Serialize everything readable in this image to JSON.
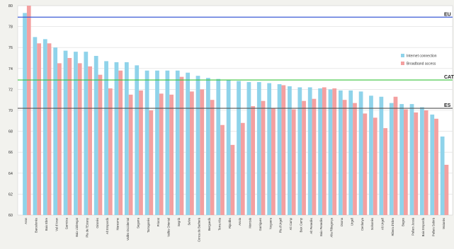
{
  "chart_data": {
    "type": "bar",
    "ylim": [
      60,
      80
    ],
    "yticks": [
      60,
      62,
      64,
      66,
      68,
      70,
      72,
      74,
      76,
      78,
      80
    ],
    "grid": true,
    "legend_position": "right",
    "categories": [
      "Aran",
      "Barcelonès",
      "Baix Ebre",
      "Val d'Aran",
      "Garrotxa",
      "Baix Llobregat",
      "Pla de l'Estany",
      "Gironès",
      "Alt Empordà",
      "Maresme",
      "Vallès Occidental",
      "Segarra",
      "Tarragonès",
      "Priorat",
      "Vallès Oriental",
      "Segrià",
      "Selva",
      "Conca de Barberà",
      "Berguedà",
      "Terra Alta",
      "Ripollès",
      "Anoia",
      "Montsià",
      "Garrigues",
      "Noguera",
      "Pla d'Urgell",
      "Alt Camp",
      "Baix Camp",
      "Alt Penedès",
      "Baix Penedès",
      "Alta Ribagorça",
      "Osona",
      "Urgell",
      "Cerdanya",
      "Solsonès",
      "Alt Urgell",
      "Ribera d'Ebre",
      "Bages",
      "Pallars Jussà",
      "Baix Empordà",
      "Pallars Sobirà",
      "Moianès"
    ],
    "series": [
      {
        "name": "Internet connection",
        "color": "#8fd3ea",
        "values": [
          79.3,
          77.0,
          76.8,
          76.0,
          75.7,
          75.6,
          75.6,
          75.2,
          74.7,
          74.6,
          74.6,
          74.3,
          73.8,
          73.8,
          73.8,
          73.8,
          73.6,
          73.3,
          73.1,
          73.0,
          72.9,
          72.8,
          72.7,
          72.7,
          72.6,
          72.5,
          72.3,
          72.2,
          72.2,
          72.1,
          72.0,
          71.9,
          71.9,
          71.8,
          71.4,
          71.3,
          70.7,
          70.6,
          70.6,
          70.3,
          69.6,
          67.5
        ]
      },
      {
        "name": "Broadband access",
        "color": "#f4a0a0",
        "values": [
          80.0,
          76.4,
          76.4,
          74.5,
          75.0,
          74.5,
          74.2,
          73.4,
          72.1,
          73.8,
          71.5,
          71.9,
          70.0,
          71.6,
          71.5,
          73.2,
          71.8,
          72.0,
          71.0,
          68.6,
          66.7,
          68.8,
          70.4,
          70.9,
          70.2,
          72.4,
          70.1,
          70.9,
          71.1,
          72.2,
          72.1,
          71.0,
          70.7,
          69.7,
          69.3,
          68.3,
          71.3,
          70.1,
          69.8,
          70.0,
          69.2,
          64.8
        ]
      }
    ],
    "reference_lines": [
      {
        "label": "EU",
        "value": 78.9,
        "color": "#3b5bd6"
      },
      {
        "label": "CAT",
        "value": 72.9,
        "color": "#39c43b"
      },
      {
        "label": "ES",
        "value": 70.2,
        "color": "#555555"
      }
    ]
  }
}
